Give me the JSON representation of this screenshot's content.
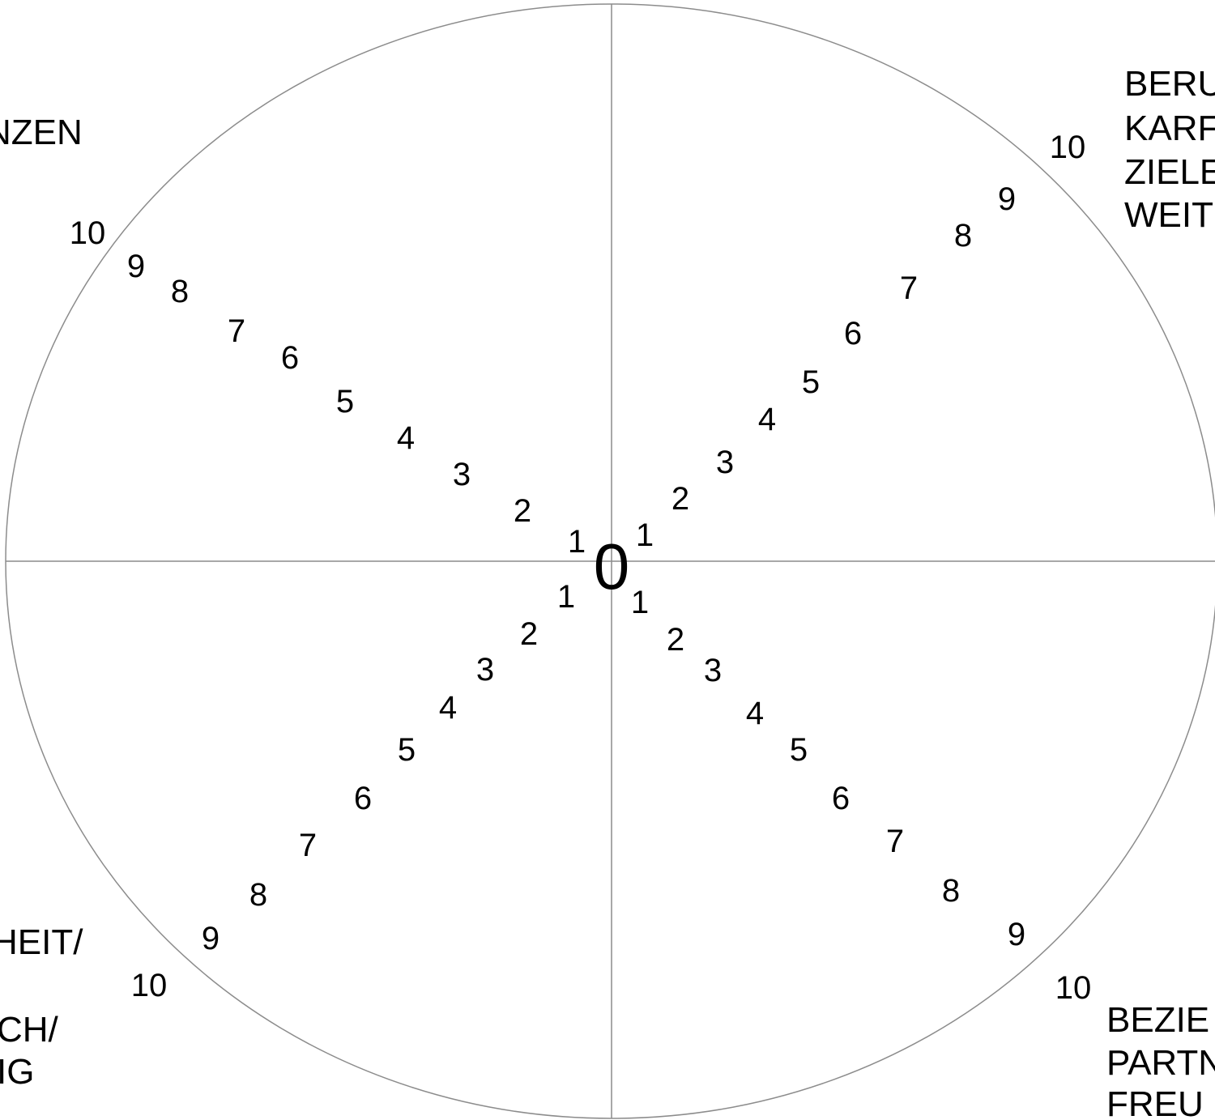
{
  "center_label": "0",
  "scale": [
    "1",
    "2",
    "3",
    "4",
    "5",
    "6",
    "7",
    "8",
    "9",
    "10"
  ],
  "colors": {
    "line": "#8c8c8c",
    "text": "#000000",
    "background": "#ffffff"
  },
  "quadrants": {
    "top_left": {
      "label_lines": [
        "NZEN"
      ]
    },
    "top_right": {
      "label_lines": [
        "BERU",
        "KARF",
        "ZIELE",
        "WEIT"
      ]
    },
    "bottom_left": {
      "label_lines": [
        "HEIT/",
        "",
        "CH/",
        "IG"
      ]
    },
    "bottom_right": {
      "label_lines": [
        "BEZIE",
        "PARTN",
        "FREU"
      ]
    }
  }
}
